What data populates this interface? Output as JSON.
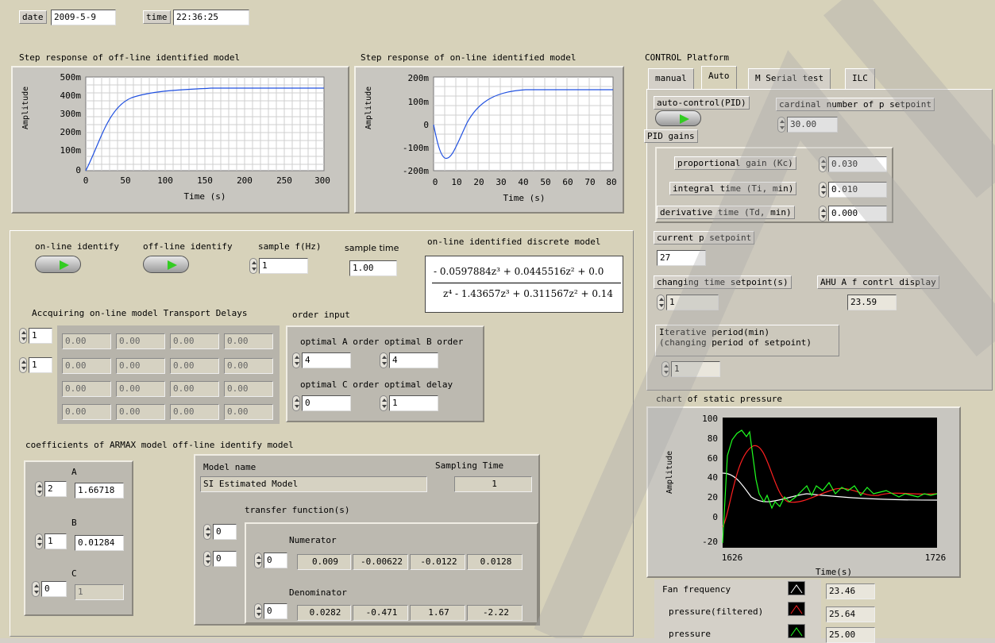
{
  "header": {
    "date_label": "date",
    "date_value": "2009-5-9",
    "time_label": "time",
    "time_value": "22:36:25"
  },
  "graph_offline": {
    "title": "Step response of off-line identified model",
    "ylabel": "Amplitude",
    "xlabel": "Time (s)",
    "yticks": [
      "500m",
      "400m",
      "300m",
      "200m",
      "100m",
      "0"
    ],
    "xticks": [
      "0",
      "50",
      "100",
      "150",
      "200",
      "250",
      "300"
    ]
  },
  "graph_online": {
    "title": "Step response of on-line identified model",
    "ylabel": "Amplitude",
    "xlabel": "Time (s)",
    "yticks": [
      "200m",
      "100m",
      "0",
      "-100m",
      "-200m"
    ],
    "xticks": [
      "0",
      "10",
      "20",
      "30",
      "40",
      "50",
      "60",
      "70",
      "80"
    ]
  },
  "identify": {
    "online_label": "on-line identify",
    "offline_label": "off-line identify",
    "sample_f_label": "sample f(Hz)",
    "sample_f_value": "1",
    "sample_time_label": "sample time",
    "sample_time_value": "1.00",
    "discrete_model_label": "on-line identified discrete model",
    "numerator_expr": "- 0.0597884z³ + 0.0445516z² + 0.0",
    "denominator_expr": "z⁴ - 1.43657z³ + 0.311567z² + 0.14"
  },
  "delays": {
    "label": "Accquiring on-line model Transport Delays",
    "index1": "1",
    "index2": "1",
    "cells": [
      "0.00",
      "0.00",
      "0.00",
      "0.00",
      "0.00",
      "0.00",
      "0.00",
      "0.00",
      "0.00",
      "0.00",
      "0.00",
      "0.00",
      "0.00",
      "0.00",
      "0.00",
      "0.00"
    ]
  },
  "order": {
    "label": "order input",
    "a_label": "optimal A order",
    "a_value": "4",
    "b_label": "optimal B order",
    "b_value": "4",
    "c_label": "optimal C order",
    "c_value": "0",
    "delay_label": "optimal delay",
    "delay_value": "1"
  },
  "armax": {
    "label": "coefficients of ARMAX model off-line identify model",
    "a_label": "A",
    "a_index": "2",
    "a_value": "1.66718",
    "b_label": "B",
    "b_index": "1",
    "b_value": "0.01284",
    "c_label": "C",
    "c_index": "0",
    "c_value": "1"
  },
  "model": {
    "name_label": "Model name",
    "name_value": "SI Estimated Model",
    "sampling_label": "Sampling Time",
    "sampling_value": "1",
    "tf_label": "transfer function(s)",
    "tf_index1": "0",
    "tf_index2": "0",
    "num_label": "Numerator",
    "num_index": "0",
    "num_values": [
      "0.009",
      "-0.00622",
      "-0.0122",
      "0.0128"
    ],
    "den_label": "Denominator",
    "den_index": "0",
    "den_values": [
      "0.0282",
      "-0.471",
      "1.67",
      "-2.22"
    ]
  },
  "control": {
    "title": "CONTROL Platform",
    "tabs": [
      "manual",
      "Auto",
      "M Serial test",
      "ILC"
    ],
    "auto_control_label": "auto-control(PID)",
    "cardinal_label": "cardinal number of p setpoint",
    "cardinal_value": "30.00",
    "pid_label": "PID gains",
    "kc_label": "proportional gain (Kc)",
    "kc_value": "0.030",
    "ti_label": "integral time (Ti, min)",
    "ti_value": "0.010",
    "td_label": "derivative time (Td, min)",
    "td_value": "0.000",
    "current_p_label": "current p setpoint",
    "current_p_value": "27",
    "changing_time_label": "changing time setpoint(s)",
    "changing_time_value": "1",
    "ahu_label": "AHU A f contrl display",
    "ahu_value": "23.59",
    "iter_label_1": "Iterative period(min)",
    "iter_label_2": "(changing period of setpoint)",
    "iter_value": "1"
  },
  "static_chart": {
    "title": "chart of static pressure",
    "ylabel": "Amplitude",
    "xlabel": "Time(s)",
    "yticks": [
      "100",
      "80",
      "60",
      "40",
      "20",
      "0",
      "-20"
    ],
    "xticks": [
      "1626",
      "1726"
    ],
    "legend": [
      {
        "name": "Fan frequency",
        "value": "23.46",
        "color": "#ffffff"
      },
      {
        "name": "pressure(filtered)",
        "value": "25.64",
        "color": "#ff2020"
      },
      {
        "name": "pressure",
        "value": "25.00",
        "color": "#20ff20"
      }
    ]
  }
}
